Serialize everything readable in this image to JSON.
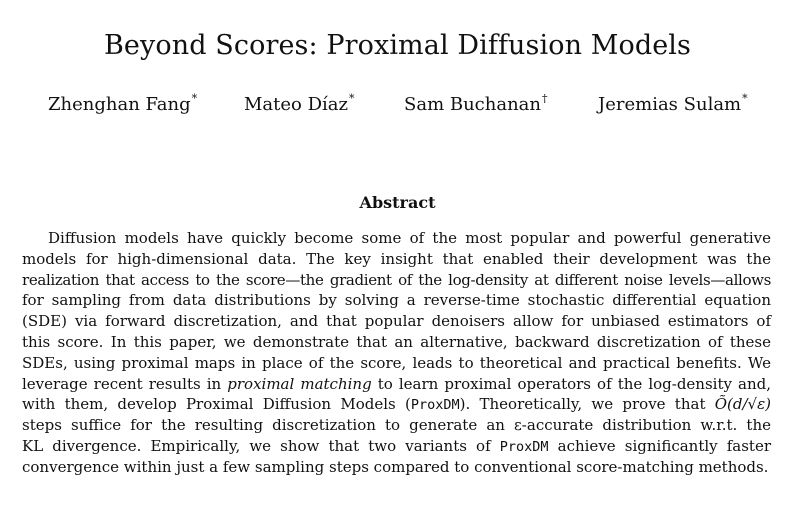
{
  "paper": {
    "title": "Beyond Scores: Proximal Diffusion Models",
    "authors": [
      {
        "name": "Zhenghan Fang",
        "mark": "*"
      },
      {
        "name": "Mateo Díaz",
        "mark": "*"
      },
      {
        "name": "Sam Buchanan",
        "mark": "†"
      },
      {
        "name": "Jeremias Sulam",
        "mark": "*"
      }
    ],
    "abstract_heading": "Abstract",
    "abstract_lines": [
      "Diffusion models have quickly become some of the most popular and powerful generative",
      "models for high-dimensional data. The key insight that enabled their development was the",
      "realization that access to the score—the gradient of the log-density at different noise levels—allows",
      "for sampling from data distributions by solving a reverse-time stochastic differential equation",
      "(SDE) via forward discretization, and that popular denoisers allow for unbiased estimators of",
      "this score. In this paper, we demonstrate that an alternative, backward discretization of these",
      "SDEs, using proximal maps in place of the score, leads to theoretical and practical benefits. We"
    ],
    "line8": {
      "before": "leverage recent results in ",
      "italic": "proximal matching",
      "after": " to learn proximal operators of the log-density and,"
    },
    "line9": {
      "before": "with them, develop Proximal Diffusion Models (",
      "code": "ProxDM",
      "middle": "). Theoretically, we prove that ",
      "math": "Õ(d/√ε)"
    },
    "line10": "steps suffice for the resulting discretization to generate an ε-accurate distribution w.r.t. the",
    "line11": {
      "before": "KL divergence. Empirically, we show that two variants of ",
      "code": "ProxDM",
      "after": " achieve significantly faster"
    },
    "line12": "convergence within just a few sampling steps compared to conventional score-matching methods."
  }
}
